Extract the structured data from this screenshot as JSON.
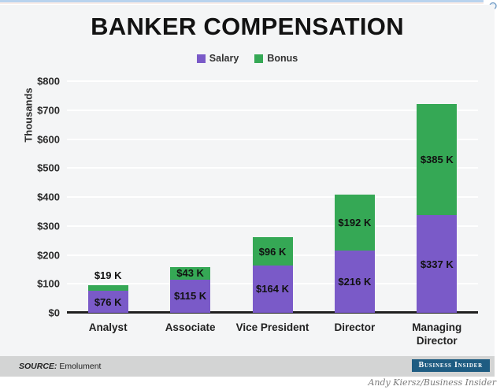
{
  "page": {
    "credit": "Andy Kiersz/Business Insider"
  },
  "icons": {
    "zoom_icon": "magnifier",
    "zoom_icon_color": "#7aa2c8"
  },
  "colors": {
    "salary": "#7a5ac8",
    "bonus": "#35a855",
    "chart_background": "#f4f5f6",
    "grid": "#ffffff",
    "axis": "#202020",
    "source_bar": "#d3d4d4",
    "brand_badge": "#1e5c82",
    "top_strip": "#b9d3ee"
  },
  "chart_data": {
    "type": "bar",
    "stacked": true,
    "title": "BANKER COMPENSATION",
    "ylabel": "Thousands",
    "ylim": [
      0,
      800
    ],
    "ytick_step": 100,
    "yticks": [
      "$0",
      "$100",
      "$200",
      "$300",
      "$400",
      "$500",
      "$600",
      "$700",
      "$800"
    ],
    "grid": true,
    "legend_position": "top",
    "categories": [
      "Analyst",
      "Associate",
      "Vice President",
      "Director",
      "Managing Director"
    ],
    "series": [
      {
        "name": "Salary",
        "color": "#7a5ac8",
        "values": [
          76,
          115,
          164,
          216,
          337
        ],
        "labels": [
          "$76 K",
          "$115 K",
          "$164 K",
          "$216 K",
          "$337 K"
        ]
      },
      {
        "name": "Bonus",
        "color": "#35a855",
        "values": [
          19,
          43,
          96,
          192,
          385
        ],
        "labels": [
          "$19 K",
          "$43 K",
          "$96 K",
          "$192 K",
          "$385 K"
        ]
      }
    ]
  },
  "source_bar": {
    "source_label": "SOURCE:",
    "source_value": "Emolument",
    "brand": "Business Insider"
  }
}
